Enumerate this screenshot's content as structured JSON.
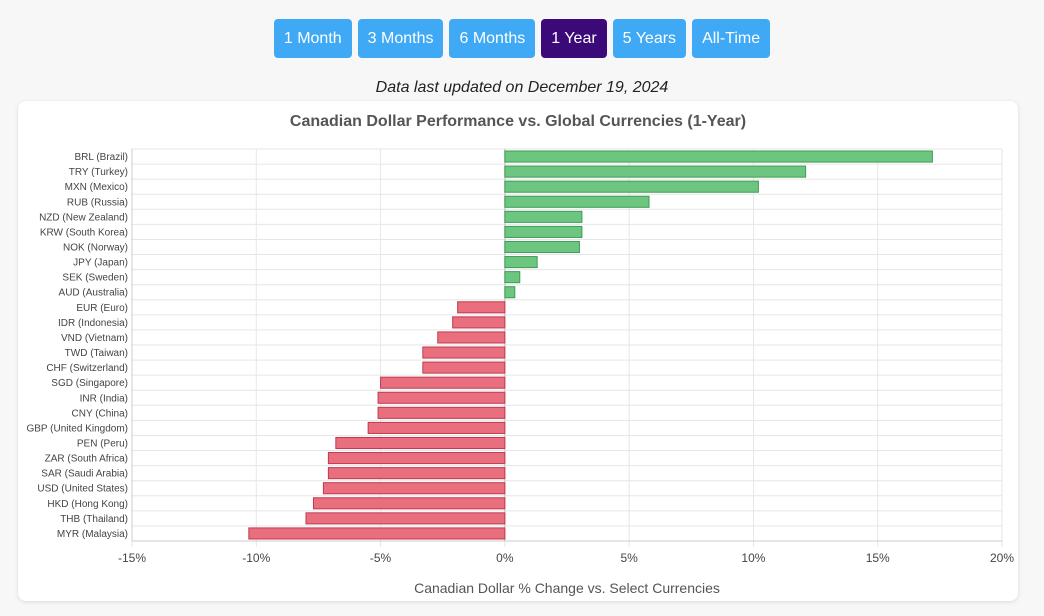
{
  "range_buttons": [
    {
      "label": "1 Month",
      "active": false
    },
    {
      "label": "3 Months",
      "active": false
    },
    {
      "label": "6 Months",
      "active": false
    },
    {
      "label": "1 Year",
      "active": true
    },
    {
      "label": "5 Years",
      "active": false
    },
    {
      "label": "All-Time",
      "active": false
    }
  ],
  "updated_text": "Data last updated on December 19, 2024",
  "colors": {
    "button": "#3fa9f5",
    "button_active": "#3b0a78",
    "positive_fill": "#6cc67f",
    "positive_stroke": "#3f9c55",
    "negative_fill": "#e96f7e",
    "negative_stroke": "#c0394f",
    "grid": "#e6e6e6"
  },
  "chart_data": {
    "type": "bar",
    "orientation": "horizontal",
    "title": "Canadian Dollar Performance vs. Global Currencies (1-Year)",
    "xlabel": "Canadian Dollar % Change vs. Select Currencies",
    "ylabel": "",
    "xlim": [
      -15,
      20
    ],
    "xticks": [
      -15,
      -10,
      -5,
      0,
      5,
      10,
      15,
      20
    ],
    "xtick_labels": [
      "-15%",
      "-10%",
      "-5%",
      "0%",
      "5%",
      "10%",
      "15%",
      "20%"
    ],
    "grid": true,
    "categories": [
      "BRL (Brazil)",
      "TRY (Turkey)",
      "MXN (Mexico)",
      "RUB (Russia)",
      "NZD (New Zealand)",
      "KRW (South Korea)",
      "NOK (Norway)",
      "JPY (Japan)",
      "SEK (Sweden)",
      "AUD (Australia)",
      "EUR (Euro)",
      "IDR (Indonesia)",
      "VND (Vietnam)",
      "TWD (Taiwan)",
      "CHF (Switzerland)",
      "SGD (Singapore)",
      "INR (India)",
      "CNY (China)",
      "GBP (United Kingdom)",
      "PEN (Peru)",
      "ZAR (South Africa)",
      "SAR (Saudi Arabia)",
      "USD (United States)",
      "HKD (Hong Kong)",
      "THB (Thailand)",
      "MYR (Malaysia)"
    ],
    "values": [
      17.2,
      12.1,
      10.2,
      5.8,
      3.1,
      3.1,
      3.0,
      1.3,
      0.6,
      0.4,
      -1.9,
      -2.1,
      -2.7,
      -3.3,
      -3.3,
      -5.0,
      -5.1,
      -5.1,
      -5.5,
      -6.8,
      -7.1,
      -7.1,
      -7.3,
      -7.7,
      -8.0,
      -10.3
    ]
  }
}
